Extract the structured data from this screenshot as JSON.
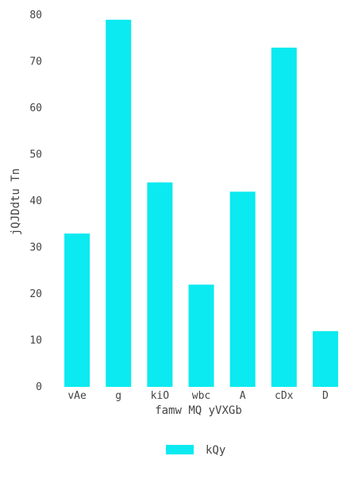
{
  "chart_data": {
    "type": "bar",
    "title": "",
    "xlabel": "famw MQ yVXGb",
    "ylabel": "jQJDdtu Tn",
    "categories": [
      "vAe",
      "g",
      "kiO",
      "wbc",
      "A",
      "cDx",
      "D"
    ],
    "series": [
      {
        "name": "kQy",
        "values": [
          33,
          79,
          44,
          22,
          42,
          73,
          12
        ],
        "color": "#0aeaf0"
      }
    ],
    "ylim": [
      0,
      80
    ],
    "yticks": [
      "0",
      "10",
      "20",
      "30",
      "40",
      "50",
      "60",
      "70",
      "80"
    ],
    "grid": false,
    "legend": "bottom-center"
  }
}
